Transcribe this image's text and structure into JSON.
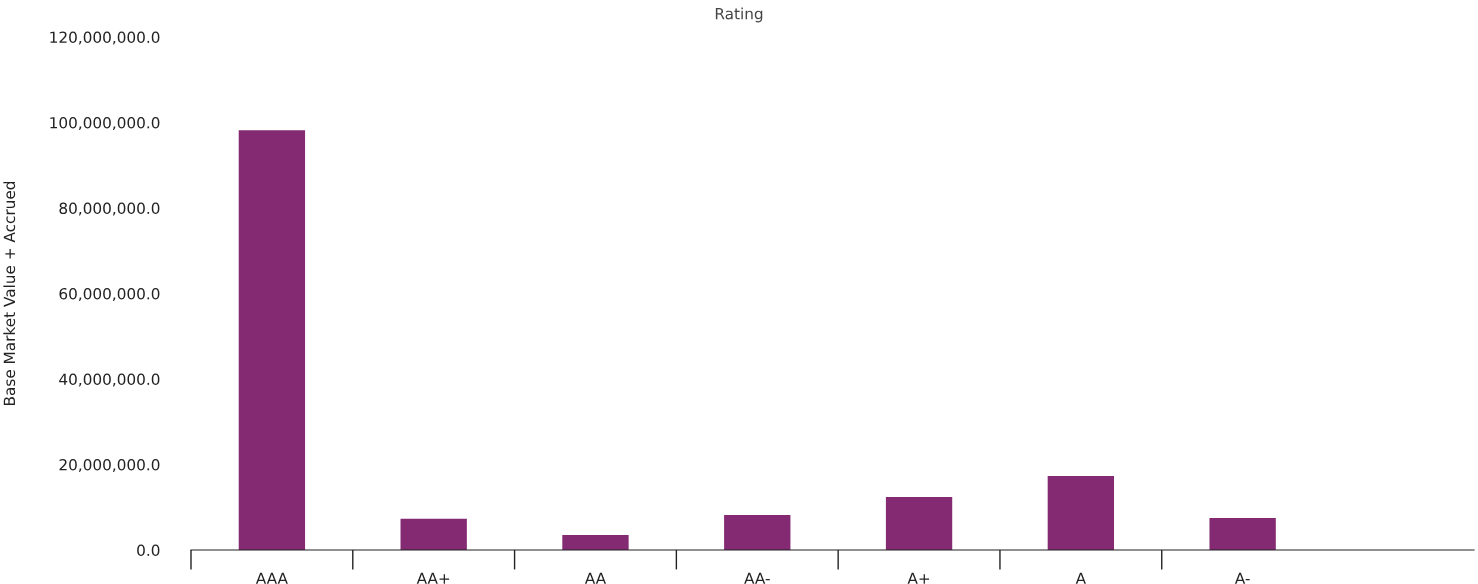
{
  "chart_data": {
    "type": "bar",
    "title": "Rating",
    "ylabel": "Base Market Value + Accrued",
    "categories": [
      "AAA",
      "AA+",
      "AA",
      "AA-",
      "A+",
      "A",
      "A-"
    ],
    "values": [
      98200000,
      7300000,
      3500000,
      8200000,
      12400000,
      17300000,
      7500000
    ],
    "color": "#832a73",
    "ylim": [
      0,
      120000000
    ],
    "yticks": [
      {
        "value": 0,
        "label": "0.0"
      },
      {
        "value": 20000000,
        "label": "20,000,000.0"
      },
      {
        "value": 40000000,
        "label": "40,000,000.0"
      },
      {
        "value": 60000000,
        "label": "60,000,000.0"
      },
      {
        "value": 80000000,
        "label": "80,000,000.0"
      },
      {
        "value": 100000000,
        "label": "100,000,000.0"
      },
      {
        "value": 120000000,
        "label": "120,000,000.0"
      }
    ],
    "grid": false
  }
}
